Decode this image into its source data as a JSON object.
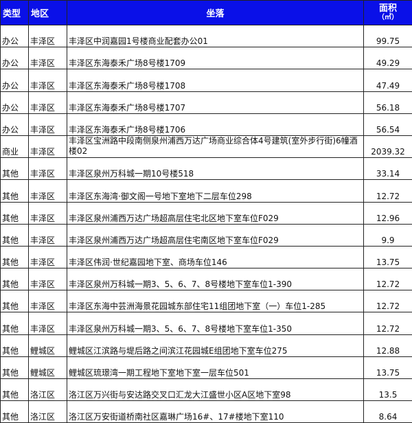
{
  "header": {
    "type": "类型",
    "district": "地区",
    "location": "坐落",
    "area": "面积",
    "area_unit": "（㎡）",
    "color": "#0a10e8"
  },
  "rows": [
    {
      "type": "办公",
      "district": "丰泽区",
      "location": "丰泽区中润嘉园1号楼商业配套办公01",
      "area": "99.75"
    },
    {
      "type": "办公",
      "district": "丰泽区",
      "location": "丰泽区东海泰禾广场8号楼1709",
      "area": "49.29"
    },
    {
      "type": "办公",
      "district": "丰泽区",
      "location": "丰泽区东海泰禾广场8号楼1708",
      "area": "47.49"
    },
    {
      "type": "办公",
      "district": "丰泽区",
      "location": "丰泽区东海泰禾广场8号楼1707",
      "area": "56.18"
    },
    {
      "type": "办公",
      "district": "丰泽区",
      "location": "丰泽区东海泰禾广场8号楼1706",
      "area": "56.54"
    },
    {
      "type": "商业",
      "district": "丰泽区",
      "location": "丰泽区宝洲路中段南侧泉州浦西万达广场商业综合体4号建筑(室外步行街)6幢酒楼02",
      "area": "2039.32"
    },
    {
      "type": "其他",
      "district": "丰泽区",
      "location": "丰泽区泉州万科城一期10号楼518",
      "area": "33.14"
    },
    {
      "type": "其他",
      "district": "丰泽区",
      "location": "丰泽区东海湾·御文阁一号地下室地下二层车位298",
      "area": "12.72"
    },
    {
      "type": "其他",
      "district": "丰泽区",
      "location": "丰泽区泉州浦西万达广场超高层住宅北区地下室车位F029",
      "area": "12.96"
    },
    {
      "type": "其他",
      "district": "丰泽区",
      "location": "丰泽区泉州浦西万达广场超高层住宅南区地下室车位F029",
      "area": "9.9"
    },
    {
      "type": "其他",
      "district": "丰泽区",
      "location": "丰泽区伟润·世纪嘉园地下室、商场车位146",
      "area": "13.75"
    },
    {
      "type": "其他",
      "district": "丰泽区",
      "location": "丰泽区泉州万科城一期3、5、6、7、8号楼地下室车位1-390",
      "area": "12.72"
    },
    {
      "type": "其他",
      "district": "丰泽区",
      "location": "丰泽区东海中芸洲海景花园城东部住宅11组团地下室（一）车位1-285",
      "area": "12.72"
    },
    {
      "type": "其他",
      "district": "丰泽区",
      "location": "丰泽区泉州万科城一期3、5、6、7、8号楼地下室车位1-350",
      "area": "12.72"
    },
    {
      "type": "其他",
      "district": "鲤城区",
      "location": "鲤城区江滨路与堤后路之间滨江花园城E组团地下室车位275",
      "area": "12.88"
    },
    {
      "type": "其他",
      "district": "鲤城区",
      "location": "鲤城区琉璟湾一期工程地下室地下室一层车位501",
      "area": "13.75"
    },
    {
      "type": "其他",
      "district": "洛江区",
      "location": "洛江区万兴街与安达路交叉口汇龙大江盛世小区A区地下室98",
      "area": "13.5"
    },
    {
      "type": "其他",
      "district": "洛江区",
      "location": "洛江区万安街道桥南社区嘉琳广场16#、17#楼地下室110",
      "area": "8.64"
    }
  ]
}
